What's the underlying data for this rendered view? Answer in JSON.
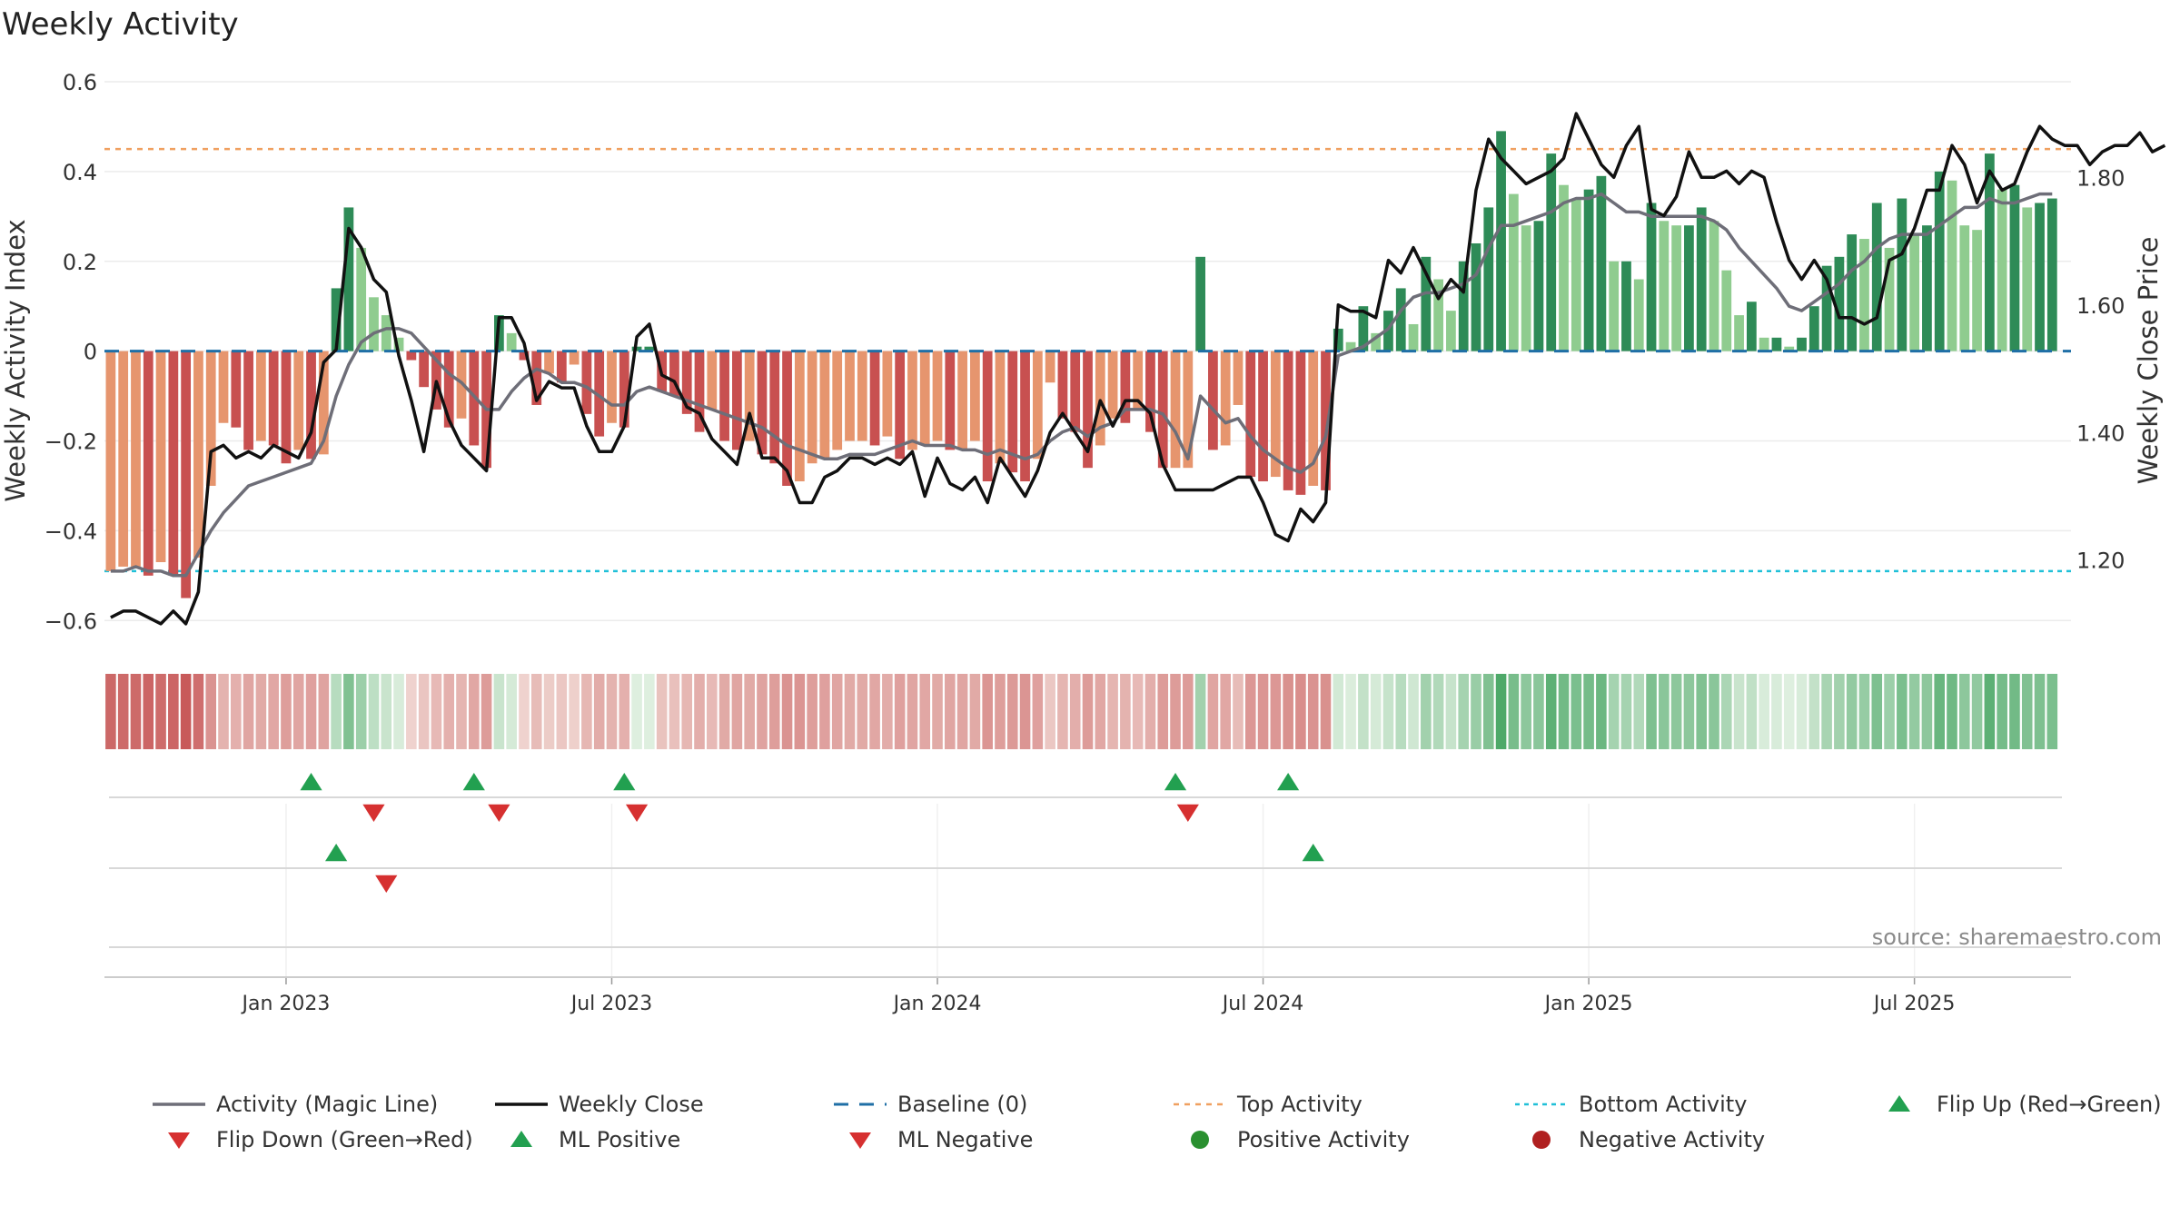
{
  "chart_data": {
    "type": "bar",
    "title": "Weekly Activity",
    "ylabel_left": "Weekly Activity Index",
    "ylabel_right": "Weekly Close Price",
    "ylim_left": [
      -0.65,
      0.6
    ],
    "yticks_left": [
      {
        "v": 0.6,
        "label": "0.6"
      },
      {
        "v": 0.4,
        "label": "0.4"
      },
      {
        "v": 0.2,
        "label": "0.2"
      },
      {
        "v": 0,
        "label": "0"
      },
      {
        "v": -0.2,
        "label": "−0.2"
      },
      {
        "v": -0.4,
        "label": "−0.4"
      },
      {
        "v": -0.6,
        "label": "−0.6"
      }
    ],
    "ylim_right": [
      1.07,
      1.95
    ],
    "yticks_right": [
      {
        "v": 1.8,
        "label": "1.80"
      },
      {
        "v": 1.6,
        "label": "1.60"
      },
      {
        "v": 1.4,
        "label": "1.40"
      },
      {
        "v": 1.2,
        "label": "1.20"
      }
    ],
    "x_week_range": [
      0,
      156
    ],
    "xticks": [
      {
        "week": 14,
        "label": "Jan 2023"
      },
      {
        "week": 40,
        "label": "Jul 2023"
      },
      {
        "week": 66,
        "label": "Jan 2024"
      },
      {
        "week": 92,
        "label": "Jul 2024"
      },
      {
        "week": 118,
        "label": "Jan 2025"
      },
      {
        "week": 144,
        "label": "Jul 2025"
      }
    ],
    "top_activity": 0.45,
    "bottom_activity": -0.49,
    "baseline": 0,
    "activity": [
      -0.49,
      -0.48,
      -0.48,
      -0.5,
      -0.47,
      -0.5,
      -0.55,
      -0.46,
      -0.3,
      -0.16,
      -0.17,
      -0.22,
      -0.2,
      -0.21,
      -0.25,
      -0.22,
      -0.24,
      -0.23,
      0.14,
      0.32,
      0.23,
      0.12,
      0.08,
      0.03,
      -0.02,
      -0.08,
      -0.13,
      -0.17,
      -0.15,
      -0.21,
      -0.26,
      0.08,
      0.04,
      -0.02,
      -0.12,
      -0.05,
      -0.07,
      -0.03,
      -0.14,
      -0.19,
      -0.16,
      -0.17,
      0.01,
      0.01,
      -0.09,
      -0.1,
      -0.14,
      -0.18,
      -0.13,
      -0.2,
      -0.22,
      -0.2,
      -0.23,
      -0.25,
      -0.3,
      -0.29,
      -0.25,
      -0.24,
      -0.22,
      -0.2,
      -0.2,
      -0.21,
      -0.19,
      -0.24,
      -0.22,
      -0.21,
      -0.2,
      -0.22,
      -0.22,
      -0.2,
      -0.29,
      -0.25,
      -0.27,
      -0.29,
      -0.24,
      -0.07,
      -0.15,
      -0.18,
      -0.26,
      -0.21,
      -0.15,
      -0.16,
      -0.13,
      -0.18,
      -0.26,
      -0.26,
      -0.26,
      0.21,
      -0.22,
      -0.21,
      -0.12,
      -0.28,
      -0.29,
      -0.28,
      -0.31,
      -0.32,
      -0.3,
      -0.31,
      0.05,
      0.02,
      0.1,
      0.04,
      0.09,
      0.14,
      0.06,
      0.21,
      0.16,
      0.09,
      0.2,
      0.24,
      0.32,
      0.49,
      0.35,
      0.28,
      0.29,
      0.44,
      0.37,
      0.34,
      0.36,
      0.39,
      0.2,
      0.2,
      0.16,
      0.33,
      0.29,
      0.28,
      0.28,
      0.32,
      0.29,
      0.18,
      0.08,
      0.11,
      0.03,
      0.03,
      0.01,
      0.03,
      0.1,
      0.19,
      0.21,
      0.26,
      0.25,
      0.33,
      0.23,
      0.34,
      0.26,
      0.28,
      0.4,
      0.38,
      0.28,
      0.27,
      0.44,
      0.36,
      0.37,
      0.32,
      0.33,
      0.34
    ],
    "magic_line": [
      -0.49,
      -0.49,
      -0.48,
      -0.49,
      -0.49,
      -0.5,
      -0.5,
      -0.45,
      -0.4,
      -0.36,
      -0.33,
      -0.3,
      -0.29,
      -0.28,
      -0.27,
      -0.26,
      -0.25,
      -0.2,
      -0.1,
      -0.03,
      0.02,
      0.04,
      0.05,
      0.05,
      0.04,
      0.01,
      -0.02,
      -0.05,
      -0.07,
      -0.1,
      -0.13,
      -0.13,
      -0.09,
      -0.06,
      -0.04,
      -0.05,
      -0.07,
      -0.07,
      -0.08,
      -0.1,
      -0.12,
      -0.12,
      -0.09,
      -0.08,
      -0.09,
      -0.1,
      -0.11,
      -0.12,
      -0.13,
      -0.14,
      -0.15,
      -0.16,
      -0.17,
      -0.19,
      -0.21,
      -0.22,
      -0.23,
      -0.24,
      -0.24,
      -0.23,
      -0.23,
      -0.23,
      -0.22,
      -0.21,
      -0.2,
      -0.21,
      -0.21,
      -0.21,
      -0.22,
      -0.22,
      -0.23,
      -0.22,
      -0.23,
      -0.24,
      -0.23,
      -0.2,
      -0.18,
      -0.17,
      -0.19,
      -0.17,
      -0.16,
      -0.13,
      -0.13,
      -0.13,
      -0.14,
      -0.18,
      -0.24,
      -0.1,
      -0.13,
      -0.16,
      -0.15,
      -0.19,
      -0.22,
      -0.24,
      -0.26,
      -0.27,
      -0.25,
      -0.19,
      -0.01,
      0.0,
      0.01,
      0.03,
      0.05,
      0.09,
      0.12,
      0.13,
      0.13,
      0.14,
      0.15,
      0.17,
      0.23,
      0.28,
      0.28,
      0.29,
      0.3,
      0.31,
      0.33,
      0.34,
      0.34,
      0.35,
      0.33,
      0.31,
      0.31,
      0.3,
      0.3,
      0.3,
      0.3,
      0.3,
      0.29,
      0.27,
      0.23,
      0.2,
      0.17,
      0.14,
      0.1,
      0.09,
      0.11,
      0.13,
      0.15,
      0.18,
      0.2,
      0.23,
      0.25,
      0.26,
      0.26,
      0.26,
      0.28,
      0.3,
      0.32,
      0.32,
      0.34,
      0.33,
      0.33,
      0.34,
      0.35,
      0.35
    ],
    "weekly_close": [
      1.11,
      1.12,
      1.12,
      1.11,
      1.1,
      1.12,
      1.1,
      1.15,
      1.37,
      1.38,
      1.36,
      1.37,
      1.36,
      1.38,
      1.37,
      1.36,
      1.4,
      1.51,
      1.53,
      1.72,
      1.69,
      1.64,
      1.62,
      1.52,
      1.45,
      1.37,
      1.48,
      1.42,
      1.38,
      1.36,
      1.34,
      1.58,
      1.58,
      1.54,
      1.45,
      1.48,
      1.47,
      1.47,
      1.41,
      1.37,
      1.37,
      1.41,
      1.55,
      1.57,
      1.49,
      1.48,
      1.44,
      1.43,
      1.39,
      1.37,
      1.35,
      1.43,
      1.36,
      1.36,
      1.34,
      1.29,
      1.29,
      1.33,
      1.34,
      1.36,
      1.36,
      1.35,
      1.36,
      1.35,
      1.37,
      1.3,
      1.36,
      1.32,
      1.31,
      1.33,
      1.29,
      1.36,
      1.33,
      1.3,
      1.34,
      1.4,
      1.43,
      1.4,
      1.37,
      1.45,
      1.41,
      1.45,
      1.45,
      1.43,
      1.35,
      1.31,
      1.31,
      1.31,
      1.31,
      1.32,
      1.33,
      1.33,
      1.29,
      1.24,
      1.23,
      1.28,
      1.26,
      1.29,
      1.6,
      1.59,
      1.59,
      1.58,
      1.67,
      1.65,
      1.69,
      1.65,
      1.61,
      1.64,
      1.62,
      1.78,
      1.86,
      1.83,
      1.81,
      1.79,
      1.8,
      1.81,
      1.83,
      1.9,
      1.86,
      1.82,
      1.8,
      1.85,
      1.88,
      1.75,
      1.74,
      1.77,
      1.84,
      1.8,
      1.8,
      1.81,
      1.79,
      1.81,
      1.8,
      1.73,
      1.67,
      1.64,
      1.67,
      1.64,
      1.58,
      1.58,
      1.57,
      1.58,
      1.67,
      1.68,
      1.72,
      1.78,
      1.78,
      1.85,
      1.82,
      1.76,
      1.81,
      1.78,
      1.79,
      1.84,
      1.88,
      1.86,
      1.85,
      1.85,
      1.82,
      1.84,
      1.85,
      1.85,
      1.87,
      1.84,
      1.85
    ],
    "flip_up_weeks": [
      16,
      29,
      41,
      85,
      94
    ],
    "flip_down_weeks": [
      21,
      31,
      42,
      86
    ],
    "ml_positive_weeks": [
      18,
      96
    ],
    "ml_negative_weeks": [
      22
    ],
    "source_note": "source: sharemaestro.com",
    "legend": [
      {
        "key": "magic",
        "label": "Activity (Magic Line)"
      },
      {
        "key": "close",
        "label": "Weekly Close"
      },
      {
        "key": "baseline",
        "label": "Baseline (0)"
      },
      {
        "key": "top",
        "label": "Top Activity"
      },
      {
        "key": "bottom",
        "label": "Bottom Activity"
      },
      {
        "key": "flipup",
        "label": "Flip Up (Red→Green)"
      },
      {
        "key": "flipdown",
        "label": "Flip Down (Green→Red)"
      },
      {
        "key": "mlpos",
        "label": "ML Positive"
      },
      {
        "key": "mlneg",
        "label": "ML Negative"
      },
      {
        "key": "posact",
        "label": "Positive Activity"
      },
      {
        "key": "negact",
        "label": "Negative Activity"
      }
    ],
    "colors": {
      "pos_dark": "#2e8b57",
      "pos_light": "#8fcc8f",
      "neg_dark": "#c85050",
      "neg_light": "#e6956e",
      "magic_line": "#6e6e78",
      "close_line": "#111111",
      "baseline": "#1f6fa6",
      "top": "#f0a060",
      "bottom": "#20c0d8",
      "marker_up": "#22a050",
      "marker_down": "#d63030",
      "dot_pos": "#2a9030",
      "dot_neg": "#b02020"
    }
  }
}
